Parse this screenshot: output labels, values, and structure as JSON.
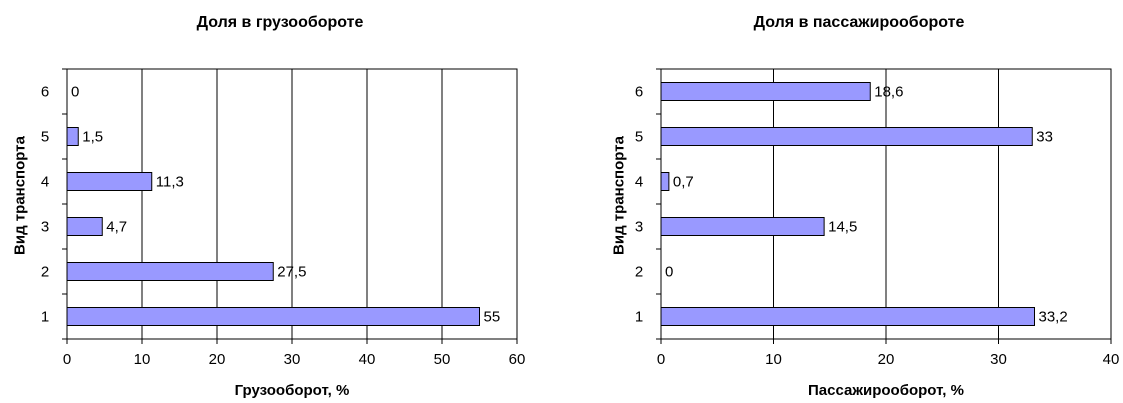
{
  "chart_data": [
    {
      "type": "bar",
      "orientation": "horizontal",
      "title": "Доля в грузообороте",
      "xlabel": "Грузооборот, %",
      "ylabel": "Вид транспорта",
      "categories": [
        "1",
        "2",
        "3",
        "4",
        "5",
        "6"
      ],
      "values": [
        55,
        27.5,
        4.7,
        11.3,
        1.5,
        0
      ],
      "data_labels": [
        "55",
        "27,5",
        "4,7",
        "11,3",
        "1,5",
        "0"
      ],
      "xlim": [
        0,
        60
      ],
      "xticks": [
        0,
        10,
        20,
        30,
        40,
        50,
        60
      ],
      "grid": true,
      "bar_color": "#9999ff"
    },
    {
      "type": "bar",
      "orientation": "horizontal",
      "title": "Доля в пассажирообороте",
      "xlabel": "Пассажирооборот, %",
      "ylabel": "Вид транспорта",
      "categories": [
        "1",
        "2",
        "3",
        "4",
        "5",
        "6"
      ],
      "values": [
        33.2,
        0,
        14.5,
        0.7,
        33,
        18.6
      ],
      "data_labels": [
        "33,2",
        "0",
        "14,5",
        "0,7",
        "33",
        "18,6"
      ],
      "xlim": [
        0,
        40
      ],
      "xticks": [
        0,
        10,
        20,
        30,
        40
      ],
      "grid": true,
      "bar_color": "#9999ff"
    }
  ]
}
